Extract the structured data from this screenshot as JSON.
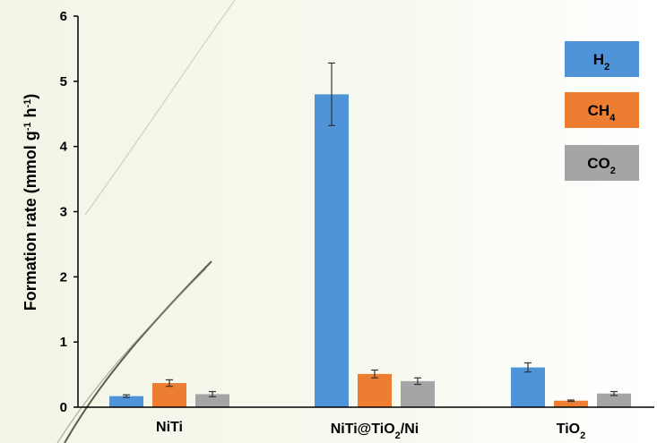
{
  "chart_data": {
    "type": "bar",
    "categories": [
      {
        "main": "NiTi",
        "sub": "",
        "tail": ""
      },
      {
        "main": "NiTi@TiO",
        "sub": "2",
        "tail": "/Ni"
      },
      {
        "main": "TiO",
        "sub": "2",
        "tail": ""
      }
    ],
    "series": [
      {
        "name": {
          "main": "H",
          "sub": "2"
        },
        "color": "#4f93d8",
        "values": [
          0.17,
          4.8,
          0.61
        ],
        "errors": [
          0.02,
          0.48,
          0.07
        ]
      },
      {
        "name": {
          "main": "CH",
          "sub": "4"
        },
        "color": "#ed7d31",
        "values": [
          0.37,
          0.51,
          0.1
        ],
        "errors": [
          0.05,
          0.06,
          0.01
        ]
      },
      {
        "name": {
          "main": "CO",
          "sub": "2"
        },
        "color": "#a5a5a5",
        "values": [
          0.2,
          0.4,
          0.21
        ],
        "errors": [
          0.04,
          0.05,
          0.03
        ]
      }
    ],
    "ylabel": {
      "pre": "Formation rate (mmol g",
      "sup1": "-1",
      "mid": " h",
      "sup2": "-1",
      "post": ")"
    },
    "ylim": [
      0,
      6
    ],
    "yticks": [
      "0",
      "1",
      "2",
      "3",
      "4",
      "5",
      "6"
    ],
    "xlabel": "",
    "title": "",
    "legend_position": "top-right",
    "grid": false
  }
}
